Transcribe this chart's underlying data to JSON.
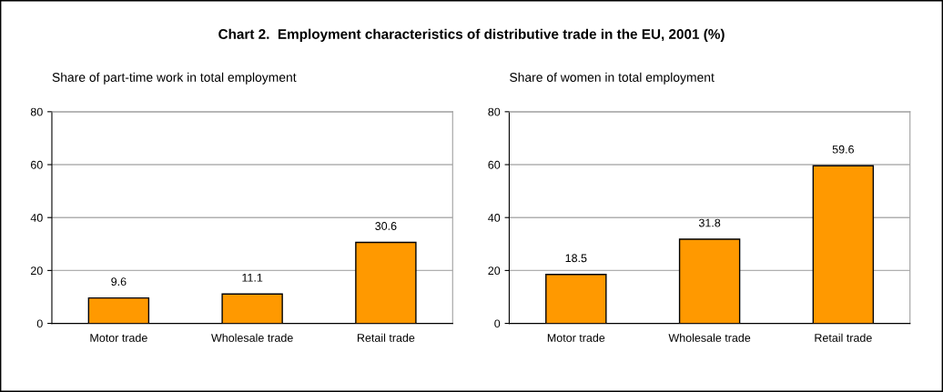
{
  "chart_data": [
    {
      "type": "bar",
      "title": "Chart 2.  Employment characteristics of distributive trade in the EU, 2001 (%)",
      "subtitle": "Share of part-time work in total employment",
      "categories": [
        "Motor trade",
        "Wholesale trade",
        "Retail trade"
      ],
      "values": [
        9.6,
        11.1,
        30.6
      ],
      "color": "#ff9900",
      "ylim": [
        0,
        80
      ],
      "yticks": [
        0,
        20,
        40,
        60,
        80
      ],
      "grid": "y",
      "data_labels": true
    },
    {
      "type": "bar",
      "subtitle": "Share of women in total employment",
      "categories": [
        "Motor trade",
        "Wholesale trade",
        "Retail trade"
      ],
      "values": [
        18.5,
        31.8,
        59.6
      ],
      "color": "#ff9900",
      "ylim": [
        0,
        80
      ],
      "yticks": [
        0,
        20,
        40,
        60,
        80
      ],
      "grid": "y",
      "data_labels": true
    }
  ]
}
